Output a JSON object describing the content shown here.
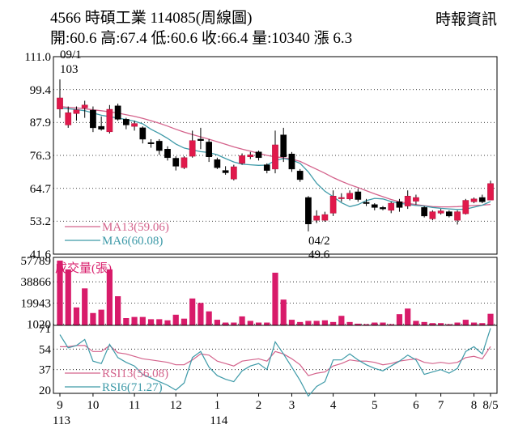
{
  "header": {
    "line1": "4566  時碩工業 114085(周線圖)",
    "line2": "開:60.6 高:67.4 低:60.6 收:66.4 量:10340 漲 6.3",
    "source": "時報資訊"
  },
  "chart_data": [
    {
      "type": "candlestick",
      "title": "4566 時碩工業 114085(周線圖)",
      "ylim": [
        41.6,
        111.0
      ],
      "y_ticks": [
        "111.0",
        "99.4",
        "87.9",
        "76.3",
        "64.7",
        "53.2",
        "41.6"
      ],
      "y_tick_values": [
        111.0,
        99.4,
        87.9,
        76.3,
        64.7,
        53.2,
        41.6
      ],
      "annotations": [
        {
          "text": "09/1",
          "note": "high"
        },
        {
          "text": "103",
          "note": "high"
        },
        {
          "text": "04/2",
          "note": "low"
        },
        {
          "text": "49.6",
          "note": "low"
        }
      ],
      "candles": [
        [
          92.6,
          96.5,
          103.0,
          89.5
        ],
        [
          87.0,
          91.3,
          93.5,
          86.0
        ],
        [
          91.0,
          92.3,
          93.5,
          88.5
        ],
        [
          93.0,
          94.0,
          95.5,
          89.5
        ],
        [
          92.2,
          86.0,
          93.5,
          84.5
        ],
        [
          86.5,
          85.5,
          90.0,
          85.0
        ],
        [
          84.6,
          92.5,
          94.0,
          84.0
        ],
        [
          93.7,
          89.0,
          94.5,
          88.5
        ],
        [
          89.0,
          87.0,
          89.5,
          85.5
        ],
        [
          86.5,
          87.5,
          88.5,
          85.0
        ],
        [
          86.0,
          82.0,
          86.5,
          80.5
        ],
        [
          80.8,
          80.5,
          82.0,
          79.0
        ],
        [
          81.3,
          78.0,
          82.0,
          76.5
        ],
        [
          78.5,
          75.5,
          79.5,
          74.5
        ],
        [
          75.3,
          72.5,
          76.0,
          71.0
        ],
        [
          72.0,
          75.5,
          76.0,
          71.5
        ],
        [
          76.0,
          81.5,
          85.0,
          75.5
        ],
        [
          82.0,
          81.5,
          86.0,
          78.5
        ],
        [
          81.0,
          75.8,
          82.0,
          74.0
        ],
        [
          74.8,
          72.0,
          75.5,
          71.5
        ],
        [
          71.0,
          70.2,
          72.5,
          69.5
        ],
        [
          68.0,
          72.3,
          73.0,
          67.5
        ],
        [
          73.5,
          76.2,
          77.0,
          73.0
        ],
        [
          75.8,
          76.5,
          77.5,
          75.0
        ],
        [
          77.5,
          75.5,
          78.0,
          74.5
        ],
        [
          73.0,
          71.0,
          73.5,
          70.0
        ],
        [
          71.5,
          80.0,
          85.0,
          70.0
        ],
        [
          83.5,
          75.8,
          86.0,
          74.0
        ],
        [
          76.8,
          71.5,
          77.5,
          70.5
        ],
        [
          70.8,
          67.8,
          71.5,
          67.0
        ],
        [
          61.5,
          52.2,
          62.0,
          49.6
        ],
        [
          53.5,
          55.0,
          57.0,
          52.5
        ],
        [
          53.5,
          55.5,
          56.5,
          53.0
        ],
        [
          56.0,
          62.0,
          64.0,
          55.0
        ],
        [
          61.5,
          61.5,
          63.0,
          60.0
        ],
        [
          61.0,
          63.0,
          64.0,
          60.5
        ],
        [
          63.5,
          60.8,
          64.5,
          60.0
        ],
        [
          59.8,
          59.5,
          61.0,
          58.5
        ],
        [
          59.0,
          58.0,
          59.5,
          57.0
        ],
        [
          58.0,
          57.5,
          58.5,
          57.0
        ],
        [
          57.0,
          59.5,
          60.0,
          56.0
        ],
        [
          60.0,
          58.0,
          61.0,
          56.5
        ],
        [
          58.5,
          62.0,
          64.0,
          57.5
        ],
        [
          60.2,
          61.5,
          62.5,
          59.0
        ],
        [
          58.0,
          55.0,
          58.5,
          54.5
        ],
        [
          54.0,
          56.5,
          57.0,
          53.5
        ],
        [
          56.0,
          56.8,
          57.5,
          55.5
        ],
        [
          56.5,
          55.0,
          57.0,
          54.5
        ],
        [
          53.5,
          56.5,
          57.0,
          52.0
        ],
        [
          55.8,
          60.5,
          61.0,
          55.5
        ],
        [
          60.0,
          61.0,
          61.5,
          59.5
        ],
        [
          61.5,
          60.0,
          62.5,
          59.5
        ],
        [
          60.6,
          66.4,
          67.4,
          60.6
        ]
      ],
      "series": [
        {
          "name": "MA13(59.06)",
          "color": "#d4638c",
          "values": [
            93.5,
            93.2,
            93.0,
            92.7,
            92.3,
            92.0,
            91.6,
            91.2,
            90.6,
            90.0,
            89.3,
            88.5,
            87.6,
            86.6,
            85.5,
            84.5,
            83.6,
            82.8,
            82.0,
            81.1,
            80.2,
            79.3,
            78.5,
            77.8,
            77.0,
            76.3,
            75.8,
            75.5,
            75.0,
            74.2,
            72.8,
            71.4,
            70.0,
            68.5,
            67.2,
            66.0,
            65.0,
            63.9,
            62.8,
            61.8,
            60.8,
            60.0,
            59.5,
            59.0,
            58.6,
            58.3,
            58.2,
            58.2,
            58.3,
            58.5,
            58.7,
            58.8,
            59.06
          ]
        },
        {
          "name": "MA6(60.08)",
          "color": "#3e9aa8",
          "values": [
            93.0,
            92.7,
            92.4,
            92.0,
            91.2,
            90.4,
            89.9,
            89.4,
            88.9,
            88.3,
            87.4,
            85.5,
            84.0,
            82.3,
            80.3,
            78.9,
            78.2,
            77.6,
            77.3,
            76.5,
            75.2,
            74.0,
            73.2,
            73.0,
            72.8,
            72.9,
            74.5,
            75.2,
            74.7,
            73.5,
            70.5,
            66.5,
            63.7,
            61.8,
            59.7,
            58.3,
            59.0,
            60.4,
            61.2,
            61.0,
            60.1,
            59.5,
            59.1,
            58.7,
            58.5,
            58.0,
            57.7,
            57.5,
            57.3,
            57.4,
            58.1,
            58.8,
            60.08
          ]
        }
      ]
    },
    {
      "type": "bar",
      "title": "成交量(張)",
      "ylim": [
        0,
        57789
      ],
      "y_ticks": [
        "57789",
        "38866",
        "19943",
        "1020"
      ],
      "y_tick_values": [
        57789,
        38866,
        19943,
        1020
      ],
      "values": [
        57789,
        50000,
        16000,
        33000,
        11000,
        14000,
        50000,
        26000,
        6500,
        7500,
        7500,
        5500,
        5500,
        4500,
        9500,
        6000,
        24000,
        20000,
        12500,
        5000,
        2500,
        2500,
        8000,
        4000,
        2500,
        2500,
        47000,
        23000,
        5000,
        3000,
        4000,
        4000,
        4500,
        3000,
        8500,
        3000,
        1500,
        1020,
        2500,
        2500,
        1020,
        10000,
        15000,
        4000,
        3000,
        2000,
        2000,
        1020,
        2500,
        5000,
        2500,
        2000,
        10340
      ]
    },
    {
      "type": "line",
      "ylim": [
        20,
        71
      ],
      "y_ticks": [
        "71",
        "54",
        "37",
        "20"
      ],
      "y_tick_values": [
        71,
        54,
        37,
        20
      ],
      "x_ticks": [
        {
          "label": "9",
          "index": 0
        },
        {
          "label": "113",
          "index": 0,
          "sub": true
        },
        {
          "label": "10",
          "index": 4
        },
        {
          "label": "11",
          "index": 9
        },
        {
          "label": "12",
          "index": 14
        },
        {
          "label": "1",
          "index": 19
        },
        {
          "label": "114",
          "index": 19,
          "sub": true
        },
        {
          "label": "2",
          "index": 24
        },
        {
          "label": "3",
          "index": 28
        },
        {
          "label": "4",
          "index": 33
        },
        {
          "label": "5",
          "index": 38
        },
        {
          "label": "6",
          "index": 43
        },
        {
          "label": "7",
          "index": 46
        },
        {
          "label": "8",
          "index": 50
        },
        {
          "label": "8/5",
          "index": 52
        }
      ],
      "series": [
        {
          "name": "RSI13(56.08)",
          "color": "#d4638c",
          "values": [
            56,
            56,
            57,
            57,
            52,
            52,
            57,
            51,
            50,
            48,
            46,
            45,
            44,
            43,
            41,
            41,
            45,
            50,
            49,
            44,
            42,
            40,
            44,
            45,
            46,
            44,
            52,
            50,
            46,
            41,
            32,
            34,
            35,
            40,
            42,
            45,
            44,
            44,
            43,
            41,
            42,
            44,
            45,
            46,
            43,
            42,
            43,
            42,
            43,
            47,
            48,
            46,
            56.08
          ]
        },
        {
          "name": "RSI6(71.27)",
          "color": "#3e9aa8",
          "values": [
            66,
            55,
            57,
            62,
            44,
            42,
            58,
            47,
            43,
            40,
            33,
            30,
            27,
            24,
            20,
            26,
            47,
            52,
            39,
            32,
            29,
            27,
            36,
            40,
            42,
            37,
            60,
            50,
            39,
            28,
            15,
            23,
            27,
            45,
            45,
            50,
            45,
            41,
            38,
            36,
            40,
            44,
            49,
            45,
            33,
            35,
            37,
            34,
            38,
            52,
            56,
            50,
            71.27
          ]
        }
      ]
    }
  ]
}
